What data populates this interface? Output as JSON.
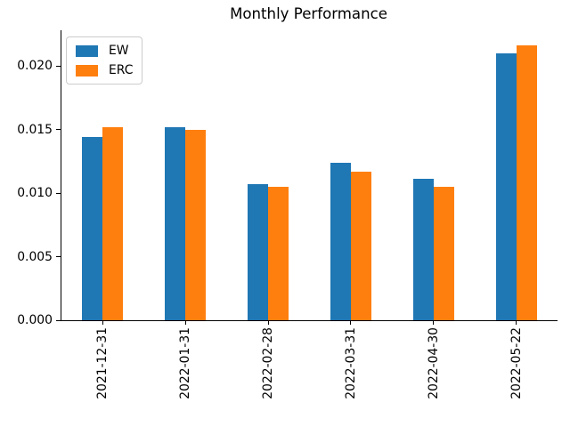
{
  "figure": {
    "background": "#ffffff",
    "axis_color": "#000000"
  },
  "chart_data": {
    "type": "bar",
    "title": "Monthly Performance",
    "xlabel": "",
    "ylabel": "",
    "categories": [
      "2021-12-31",
      "2022-01-31",
      "2022-02-28",
      "2022-03-31",
      "2022-04-30",
      "2022-05-22"
    ],
    "series": [
      {
        "name": "EW",
        "color": "#1f77b4",
        "values": [
          0.0144,
          0.0152,
          0.0107,
          0.0124,
          0.0111,
          0.021
        ]
      },
      {
        "name": "ERC",
        "color": "#ff7f0e",
        "values": [
          0.0152,
          0.015,
          0.0105,
          0.0117,
          0.0105,
          0.0216
        ]
      }
    ],
    "ylim": [
      0.0,
      0.0228
    ],
    "yticks": [
      0.0,
      0.005,
      0.01,
      0.015,
      0.02
    ],
    "ytick_labels": [
      "0.000",
      "0.005",
      "0.010",
      "0.015",
      "0.020"
    ],
    "x_tick_rotation": 90,
    "grid": false,
    "legend_position": "upper left",
    "spines": {
      "top": false,
      "right": false,
      "left": true,
      "bottom": true
    }
  }
}
